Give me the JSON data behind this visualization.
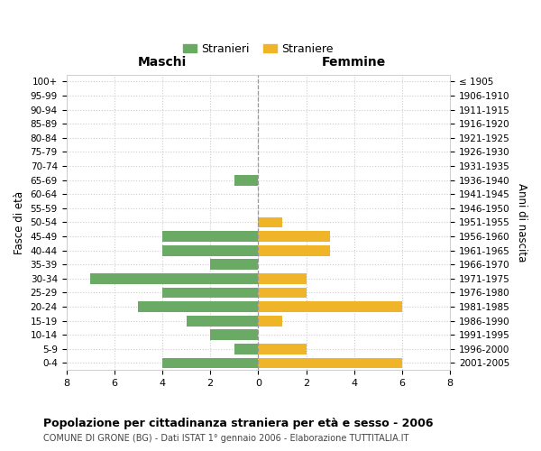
{
  "age_groups_bottom_to_top": [
    "0-4",
    "5-9",
    "10-14",
    "15-19",
    "20-24",
    "25-29",
    "30-34",
    "35-39",
    "40-44",
    "45-49",
    "50-54",
    "55-59",
    "60-64",
    "65-69",
    "70-74",
    "75-79",
    "80-84",
    "85-89",
    "90-94",
    "95-99",
    "100+"
  ],
  "birth_years_bottom_to_top": [
    "2001-2005",
    "1996-2000",
    "1991-1995",
    "1986-1990",
    "1981-1985",
    "1976-1980",
    "1971-1975",
    "1966-1970",
    "1961-1965",
    "1956-1960",
    "1951-1955",
    "1946-1950",
    "1941-1945",
    "1936-1940",
    "1931-1935",
    "1926-1930",
    "1921-1925",
    "1916-1920",
    "1911-1915",
    "1906-1910",
    "≤ 1905"
  ],
  "maschi_bottom_to_top": [
    4,
    1,
    2,
    3,
    5,
    4,
    7,
    2,
    4,
    4,
    0,
    0,
    0,
    1,
    0,
    0,
    0,
    0,
    0,
    0,
    0
  ],
  "femmine_bottom_to_top": [
    6,
    2,
    0,
    1,
    6,
    2,
    2,
    0,
    3,
    3,
    1,
    0,
    0,
    0,
    0,
    0,
    0,
    0,
    0,
    0,
    0
  ],
  "color_maschi": "#6aaa64",
  "color_femmine": "#f0b429",
  "title": "Popolazione per cittadinanza straniera per età e sesso - 2006",
  "subtitle": "COMUNE DI GRONE (BG) - Dati ISTAT 1° gennaio 2006 - Elaborazione TUTTITALIA.IT",
  "header_left": "Maschi",
  "header_right": "Femmine",
  "ylabel_left": "Fasce di età",
  "ylabel_right": "Anni di nascita",
  "legend_maschi": "Stranieri",
  "legend_femmine": "Straniere",
  "xlim": 8,
  "bg_color": "#ffffff",
  "grid_color": "#cccccc",
  "spine_color": "#cccccc"
}
